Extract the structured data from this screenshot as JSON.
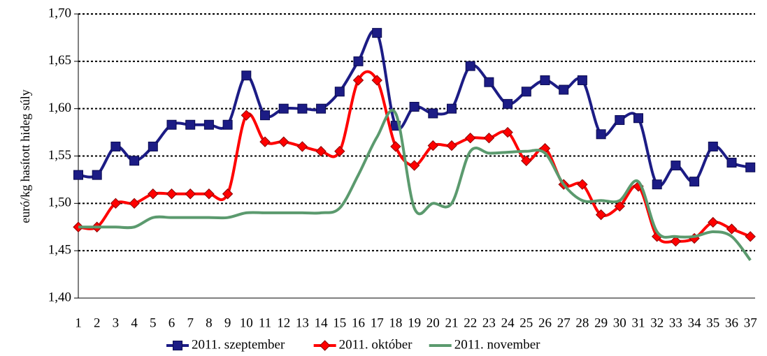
{
  "chart_data": {
    "type": "line",
    "y_label": "euró/kg hasított hideg súly",
    "categories": [
      "1",
      "2",
      "3",
      "4",
      "5",
      "6",
      "7",
      "8",
      "9",
      "10",
      "11",
      "12",
      "13",
      "14",
      "15",
      "16",
      "17",
      "18",
      "19",
      "20",
      "21",
      "22",
      "23",
      "24",
      "25",
      "26",
      "27",
      "28",
      "29",
      "30",
      "31",
      "32",
      "33",
      "34",
      "35",
      "36",
      "37"
    ],
    "series": [
      {
        "name": "2011. szeptember",
        "color": "#1c1c85",
        "marker": "square",
        "values": [
          1.53,
          1.53,
          1.56,
          1.545,
          1.56,
          1.583,
          1.583,
          1.583,
          1.583,
          1.635,
          1.593,
          1.6,
          1.6,
          1.6,
          1.618,
          1.65,
          1.68,
          1.582,
          1.602,
          1.595,
          1.6,
          1.645,
          1.628,
          1.605,
          1.618,
          1.63,
          1.62,
          1.63,
          1.573,
          1.588,
          1.59,
          1.52,
          1.54,
          1.523,
          1.56,
          1.543,
          1.538
        ]
      },
      {
        "name": "2011. október",
        "color": "#ff0000",
        "marker": "diamond",
        "values": [
          1.475,
          1.475,
          1.5,
          1.5,
          1.51,
          1.51,
          1.51,
          1.51,
          1.51,
          1.593,
          1.565,
          1.565,
          1.56,
          1.555,
          1.555,
          1.63,
          1.63,
          1.56,
          1.54,
          1.561,
          1.561,
          1.569,
          1.569,
          1.575,
          1.545,
          1.558,
          1.52,
          1.52,
          1.488,
          1.497,
          1.518,
          1.465,
          1.46,
          1.463,
          1.48,
          1.473,
          1.465
        ]
      },
      {
        "name": "2011. november",
        "color": "#5b9a6e",
        "values": [
          1.475,
          1.475,
          1.475,
          1.475,
          1.485,
          1.485,
          1.485,
          1.485,
          1.485,
          1.49,
          1.49,
          1.49,
          1.49,
          1.49,
          1.495,
          1.53,
          1.57,
          1.595,
          1.495,
          1.5,
          1.5,
          1.555,
          1.553,
          1.554,
          1.555,
          1.553,
          1.52,
          1.503,
          1.503,
          1.503,
          1.523,
          1.47,
          1.465,
          1.465,
          1.47,
          1.465,
          1.44
        ]
      }
    ],
    "ylim": [
      1.4,
      1.7
    ],
    "yticks": [
      {
        "value": 1.4,
        "label": "1,40"
      },
      {
        "value": 1.45,
        "label": "1,45"
      },
      {
        "value": 1.5,
        "label": "1,50"
      },
      {
        "value": 1.55,
        "label": "1,55"
      },
      {
        "value": 1.6,
        "label": "1,60"
      },
      {
        "value": 1.65,
        "label": "1,65"
      },
      {
        "value": 1.7,
        "label": "1,70"
      }
    ],
    "grid": true,
    "legend": "bottom"
  }
}
